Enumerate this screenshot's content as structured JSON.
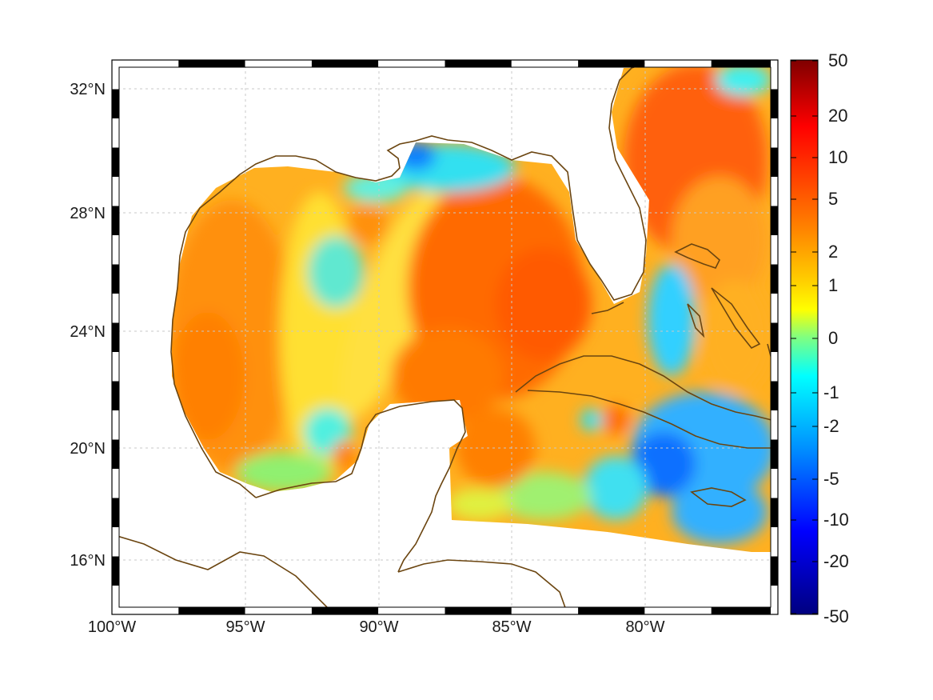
{
  "map": {
    "lon_ticks": [
      "100°W",
      "95°W",
      "90°W",
      "85°W",
      "80°W"
    ],
    "lat_ticks": [
      "32°N",
      "28°N",
      "24°N",
      "20°N",
      "16°N"
    ],
    "gridlines": true,
    "frame_style": "black-white checkered border",
    "coastline_color": "#6b4510"
  },
  "colorbar": {
    "labels": [
      "50",
      "20",
      "10",
      "5",
      "2",
      "1",
      "0",
      "-1",
      "-2",
      "-5",
      "-10",
      "-20",
      "-50"
    ],
    "colormap": "jet",
    "top_color": "#7f0000",
    "bottom_color": "#00007f"
  }
}
